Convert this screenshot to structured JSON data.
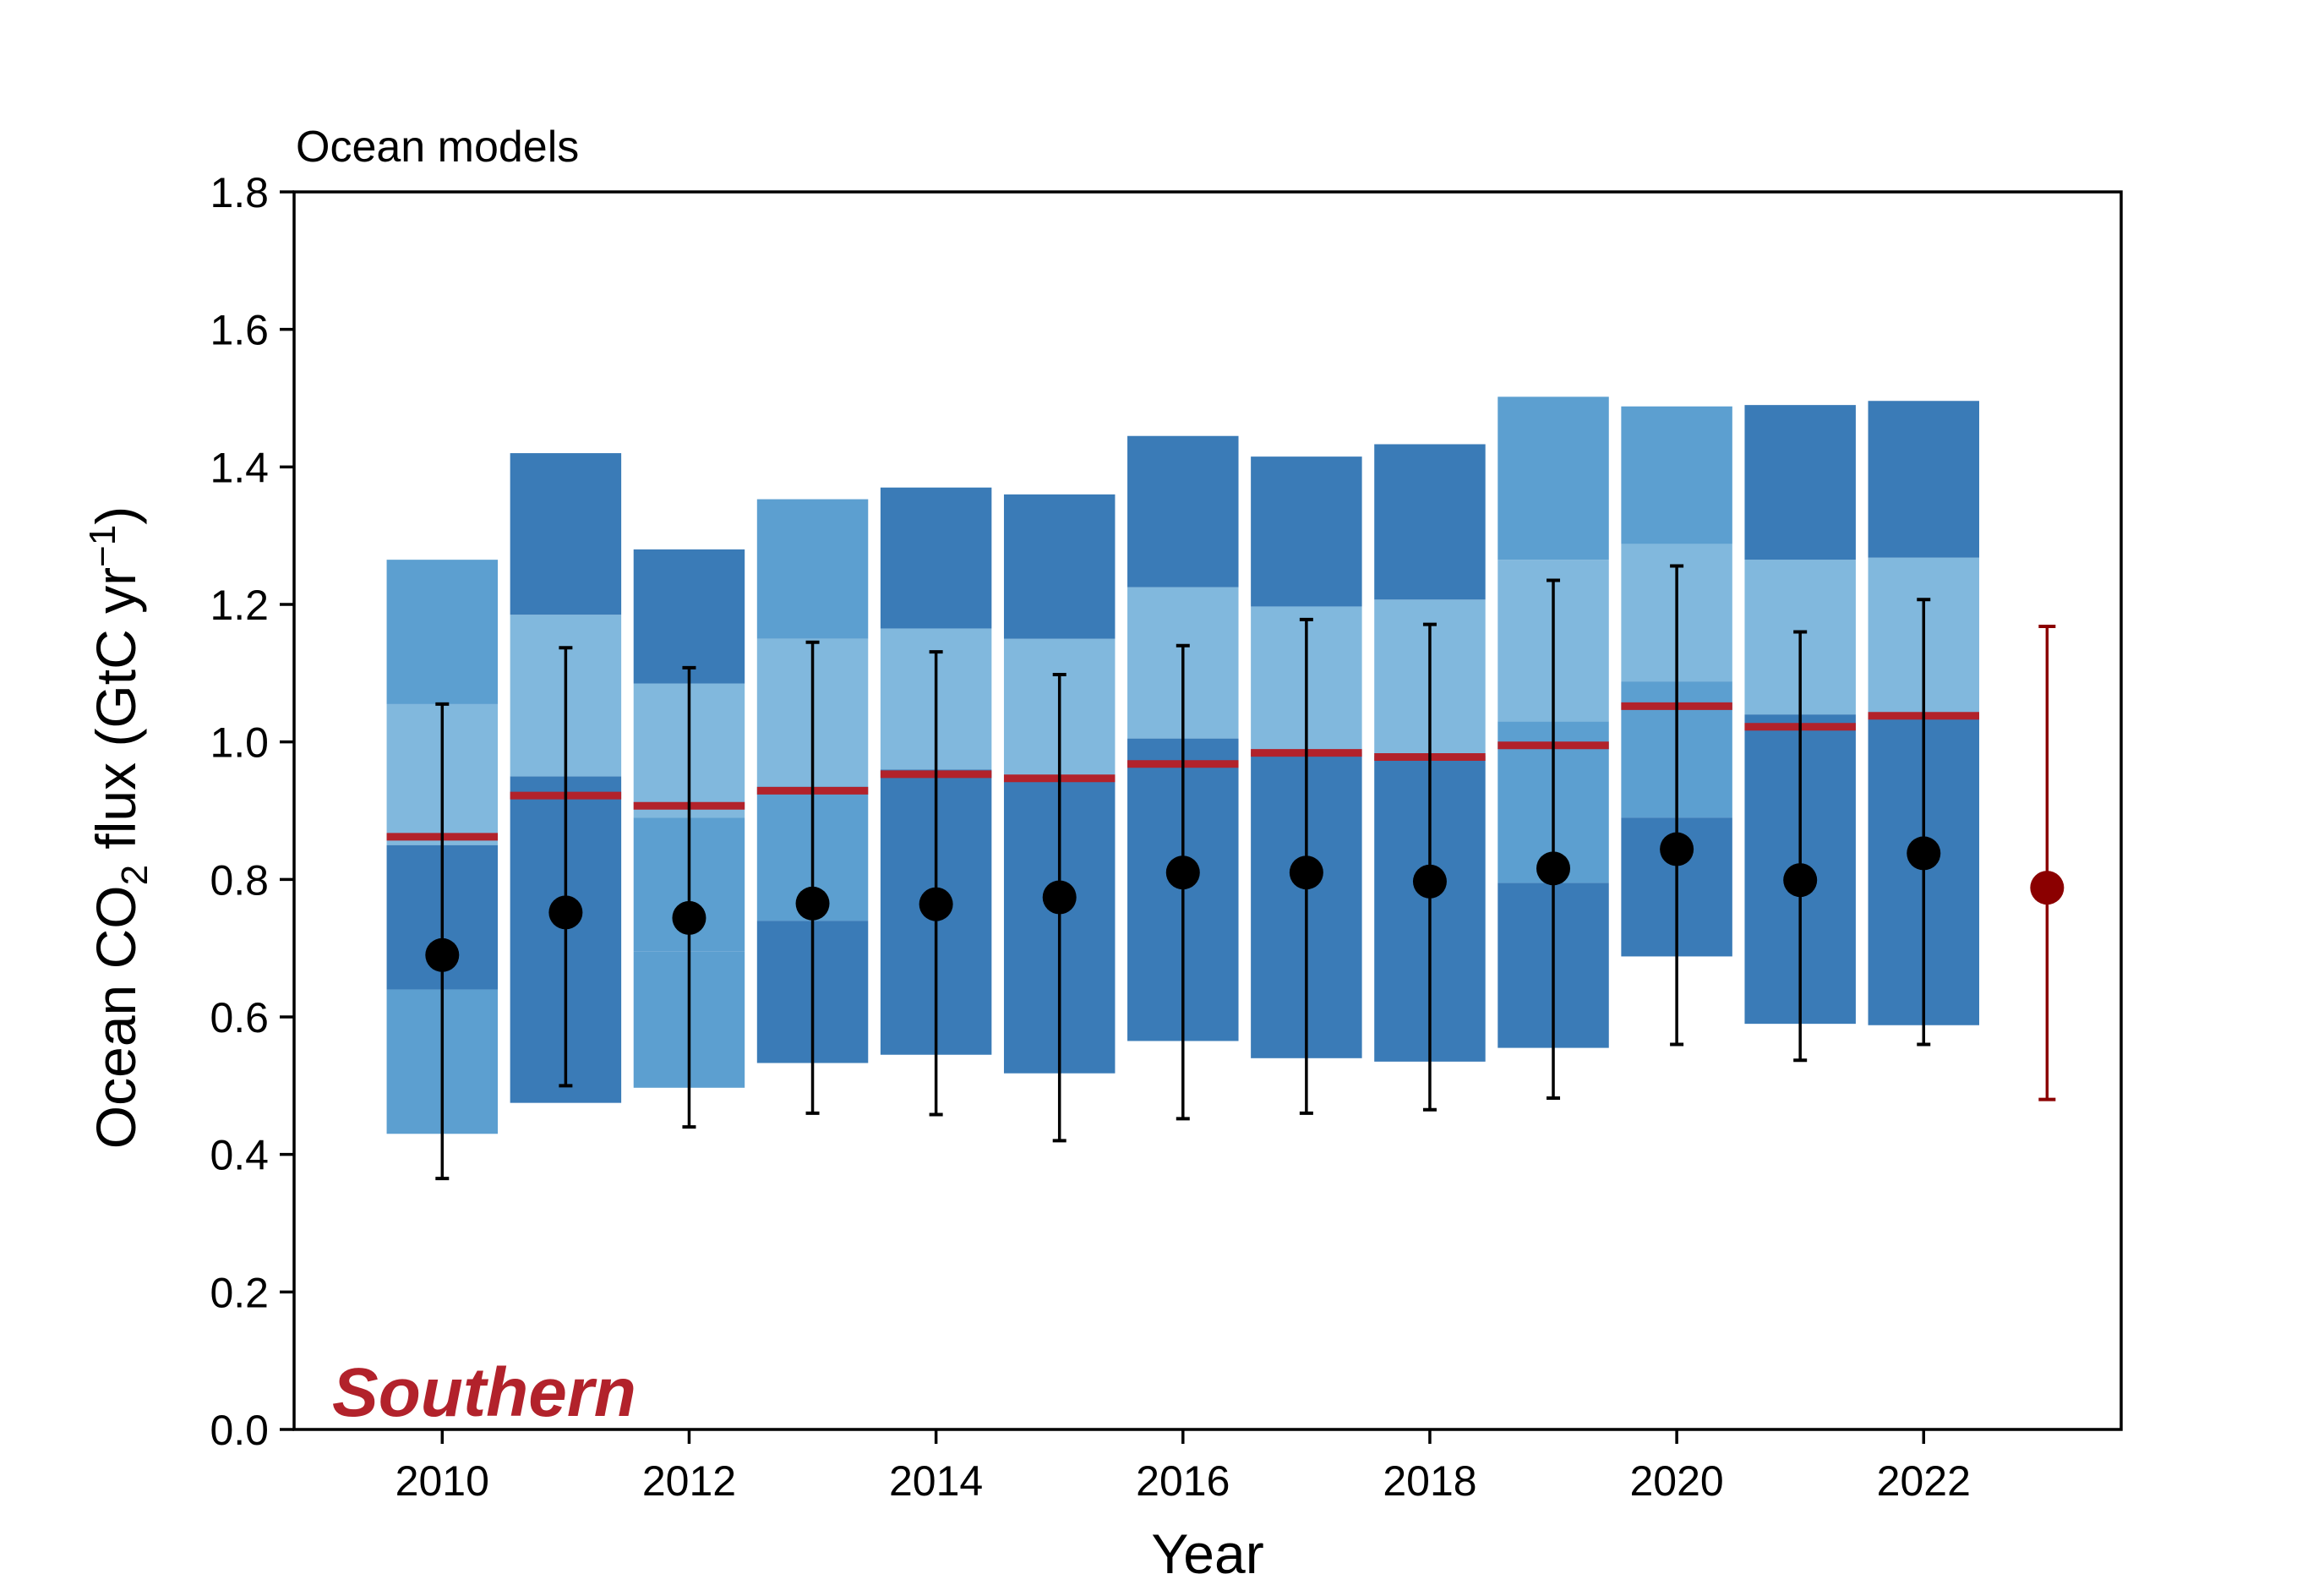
{
  "colors": {
    "axis": "#000000",
    "bar_dark": "#3a7bb7",
    "bar_medium": "#5c9fd0",
    "bar_light": "#81b8dd",
    "median_line": "#b2222b",
    "mean_marker": "#000000",
    "observation_marker": "#8b0000",
    "region_label": "#b2222b"
  },
  "chart_data": {
    "type": "bar",
    "title": "",
    "top_label": "Ocean models",
    "region_label": "Southern",
    "xlabel": "Year",
    "ylabel_main": "Ocean CO",
    "ylabel_sub": "2",
    "ylabel_rest": " flux (GtC yr",
    "ylabel_sup": "−1",
    "ylabel_close": ")",
    "xlim": [
      2008.8,
      2023.6
    ],
    "ylim": [
      0.0,
      1.8
    ],
    "x_ticks": [
      2010,
      2012,
      2014,
      2016,
      2018,
      2020,
      2022
    ],
    "x_tick_labels": [
      "2010",
      "2012",
      "2014",
      "2016",
      "2018",
      "2020",
      "2022"
    ],
    "y_ticks": [
      0.0,
      0.2,
      0.4,
      0.6,
      0.8,
      1.0,
      1.2,
      1.4,
      1.6,
      1.8
    ],
    "y_tick_labels": [
      "0.0",
      "0.2",
      "0.4",
      "0.6",
      "0.8",
      "1.0",
      "1.2",
      "1.4",
      "1.6",
      "1.8"
    ],
    "grid": false,
    "years": [
      2010,
      2011,
      2012,
      2013,
      2014,
      2015,
      2016,
      2017,
      2018,
      2019,
      2020,
      2021,
      2022
    ],
    "band_segments": [
      [
        [
          0.43,
          0.64,
          "bar_medium"
        ],
        [
          0.64,
          0.85,
          "bar_dark"
        ],
        [
          0.85,
          1.055,
          "bar_light"
        ],
        [
          1.055,
          1.265,
          "bar_medium"
        ]
      ],
      [
        [
          0.475,
          0.95,
          "bar_dark"
        ],
        [
          0.95,
          1.185,
          "bar_light"
        ],
        [
          1.185,
          1.42,
          "bar_dark"
        ]
      ],
      [
        [
          0.497,
          0.695,
          "bar_medium"
        ],
        [
          0.695,
          0.89,
          "bar_medium"
        ],
        [
          0.89,
          1.085,
          "bar_light"
        ],
        [
          1.085,
          1.28,
          "bar_dark"
        ]
      ],
      [
        [
          0.533,
          0.74,
          "bar_dark"
        ],
        [
          0.74,
          0.935,
          "bar_medium"
        ],
        [
          0.935,
          1.15,
          "bar_light"
        ],
        [
          1.15,
          1.353,
          "bar_medium"
        ]
      ],
      [
        [
          0.545,
          0.96,
          "bar_dark"
        ],
        [
          0.96,
          1.165,
          "bar_light"
        ],
        [
          1.165,
          1.37,
          "bar_dark"
        ]
      ],
      [
        [
          0.518,
          0.945,
          "bar_dark"
        ],
        [
          0.945,
          1.15,
          "bar_light"
        ],
        [
          1.15,
          1.36,
          "bar_dark"
        ]
      ],
      [
        [
          0.565,
          1.005,
          "bar_dark"
        ],
        [
          1.005,
          1.225,
          "bar_light"
        ],
        [
          1.225,
          1.445,
          "bar_dark"
        ]
      ],
      [
        [
          0.54,
          0.985,
          "bar_dark"
        ],
        [
          0.985,
          1.197,
          "bar_light"
        ],
        [
          1.197,
          1.415,
          "bar_dark"
        ]
      ],
      [
        [
          0.535,
          0.98,
          "bar_dark"
        ],
        [
          0.98,
          1.207,
          "bar_light"
        ],
        [
          1.207,
          1.433,
          "bar_dark"
        ]
      ],
      [
        [
          0.555,
          0.795,
          "bar_dark"
        ],
        [
          0.795,
          1.03,
          "bar_medium"
        ],
        [
          1.03,
          1.265,
          "bar_light"
        ],
        [
          1.265,
          1.502,
          "bar_medium"
        ]
      ],
      [
        [
          0.688,
          0.89,
          "bar_dark"
        ],
        [
          0.89,
          1.088,
          "bar_medium"
        ],
        [
          1.088,
          1.288,
          "bar_light"
        ],
        [
          1.288,
          1.488,
          "bar_medium"
        ]
      ],
      [
        [
          0.59,
          1.04,
          "bar_dark"
        ],
        [
          1.04,
          1.265,
          "bar_light"
        ],
        [
          1.265,
          1.49,
          "bar_dark"
        ]
      ],
      [
        [
          0.588,
          1.04,
          "bar_dark"
        ],
        [
          1.04,
          1.268,
          "bar_light"
        ],
        [
          1.268,
          1.496,
          "bar_dark"
        ]
      ]
    ],
    "medians": [
      0.862,
      0.922,
      0.907,
      0.929,
      0.953,
      0.947,
      0.968,
      0.984,
      0.978,
      0.995,
      1.052,
      1.022,
      1.038
    ],
    "means": [
      0.69,
      0.752,
      0.744,
      0.765,
      0.764,
      0.774,
      0.81,
      0.81,
      0.797,
      0.816,
      0.844,
      0.799,
      0.838
    ],
    "error_low": [
      0.365,
      0.5,
      0.44,
      0.46,
      0.458,
      0.42,
      0.452,
      0.46,
      0.465,
      0.482,
      0.56,
      0.537,
      0.56
    ],
    "error_high": [
      1.055,
      1.137,
      1.108,
      1.145,
      1.131,
      1.098,
      1.14,
      1.178,
      1.171,
      1.235,
      1.256,
      1.16,
      1.207
    ],
    "observation": {
      "x": 2023,
      "y": 0.788,
      "low": 0.48,
      "high": 1.168
    }
  }
}
